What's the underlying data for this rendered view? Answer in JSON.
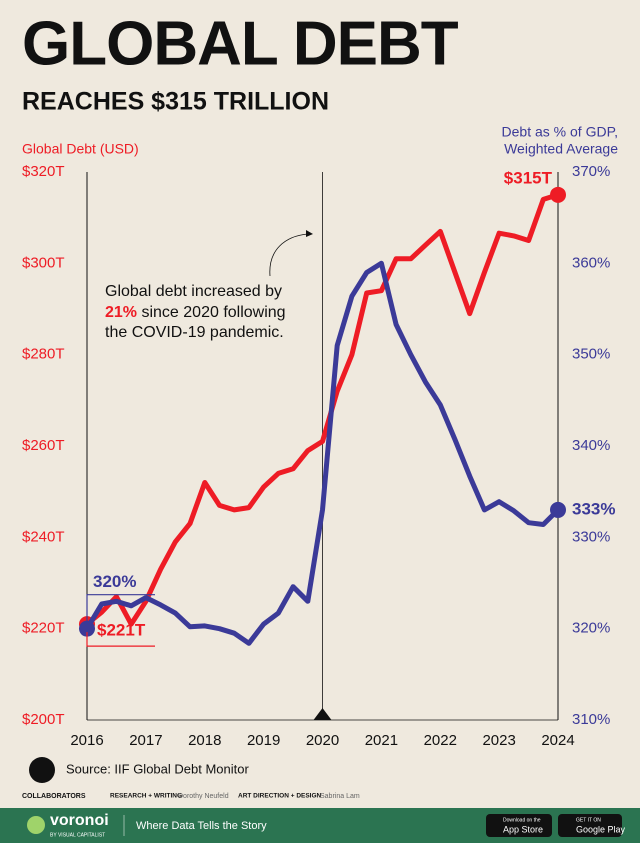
{
  "chart_data": {
    "type": "line",
    "title": "GLOBAL DEBT",
    "subtitle": "REACHES $315 TRILLION",
    "y_label": "Global Debt (USD)",
    "y2_label": [
      "Debt as % of GDP,",
      "Weighted Average"
    ],
    "annotation": {
      "line1": "Global debt increased by",
      "highlight": "21%",
      "line2_rest": " since 2020 following",
      "line3": "the COVID-19 pandemic."
    },
    "x": [
      2016,
      2016.25,
      2016.5,
      2016.75,
      2017,
      2017.25,
      2017.5,
      2017.75,
      2018,
      2018.25,
      2018.5,
      2018.75,
      2019,
      2019.25,
      2019.5,
      2019.75,
      2020,
      2020.25,
      2020.5,
      2020.75,
      2021,
      2021.25,
      2021.5,
      2021.75,
      2022,
      2022.25,
      2022.5,
      2022.75,
      2023,
      2023.25,
      2023.5,
      2023.75,
      2024
    ],
    "xlim": [
      2016,
      2024
    ],
    "xticks": [
      2016,
      2017,
      2018,
      2019,
      2020,
      2021,
      2022,
      2023,
      2024
    ],
    "ylim": [
      200,
      320
    ],
    "yticks": [
      {
        "value": 200,
        "label": "$200T"
      },
      {
        "value": 220,
        "label": "$220T"
      },
      {
        "value": 240,
        "label": "$240T"
      },
      {
        "value": 260,
        "label": "$260T"
      },
      {
        "value": 280,
        "label": "$280T"
      },
      {
        "value": 300,
        "label": "$300T"
      },
      {
        "value": 320,
        "label": "$320T"
      }
    ],
    "y2lim": [
      310,
      370
    ],
    "y2ticks": [
      {
        "value": 310,
        "label": "310%"
      },
      {
        "value": 320,
        "label": "320%"
      },
      {
        "value": 330,
        "label": "330%"
      },
      {
        "value": 340,
        "label": "340%"
      },
      {
        "value": 350,
        "label": "350%"
      },
      {
        "value": 360,
        "label": "360%"
      },
      {
        "value": 370,
        "label": "370%"
      }
    ],
    "series": [
      {
        "name": "Global Debt (USD)",
        "color": "#ee1c25",
        "values": [
          221,
          223.6,
          227,
          221,
          226,
          233,
          239,
          243,
          252,
          247,
          246,
          246.5,
          251,
          254,
          255,
          259,
          261,
          272,
          280,
          293.5,
          294,
          301,
          301,
          304,
          307,
          298,
          289,
          298,
          306.6,
          306,
          305,
          314,
          315
        ],
        "value_labels": [
          "$221T",
          null,
          null,
          null,
          null,
          null,
          null,
          null,
          null,
          null,
          null,
          null,
          null,
          null,
          null,
          null,
          null,
          null,
          null,
          null,
          null,
          null,
          null,
          null,
          null,
          null,
          null,
          null,
          null,
          null,
          null,
          null,
          "$315T"
        ]
      },
      {
        "name": "Debt as % of GDP, Weighted Average",
        "color": "#3b3a98",
        "axis": "y2",
        "values": [
          320,
          322.7,
          323,
          322.5,
          323.4,
          322.6,
          321.7,
          320.2,
          320.3,
          320,
          319.5,
          318.4,
          320.5,
          321.7,
          324.6,
          323,
          333,
          351,
          356.4,
          359,
          360,
          353.3,
          350,
          347,
          344.5,
          340.7,
          336.7,
          333,
          333.9,
          332.9,
          331.6,
          331.4,
          333
        ],
        "value_labels": [
          "320%",
          null,
          null,
          null,
          null,
          null,
          null,
          null,
          null,
          null,
          null,
          null,
          null,
          null,
          null,
          null,
          null,
          null,
          null,
          null,
          null,
          null,
          null,
          null,
          null,
          null,
          null,
          null,
          null,
          null,
          null,
          null,
          "333%"
        ]
      }
    ],
    "source": "Source: IIF Global Debt Monitor"
  },
  "footer": {
    "collaborators": "COLLABORATORS",
    "research_role": "RESEARCH + WRITING",
    "research_name": "Dorothy Neufeld",
    "design_role": "ART DIRECTION + DESIGN",
    "design_name": "Sabrina Lam",
    "brand": "voronoi",
    "brand_sub": "BY VISUAL CAPITALIST",
    "tagline": "Where Data Tells the Story",
    "appstore_small": "Download on the",
    "appstore": "App Store",
    "googleplay_small": "GET IT ON",
    "googleplay": "Google Play"
  }
}
